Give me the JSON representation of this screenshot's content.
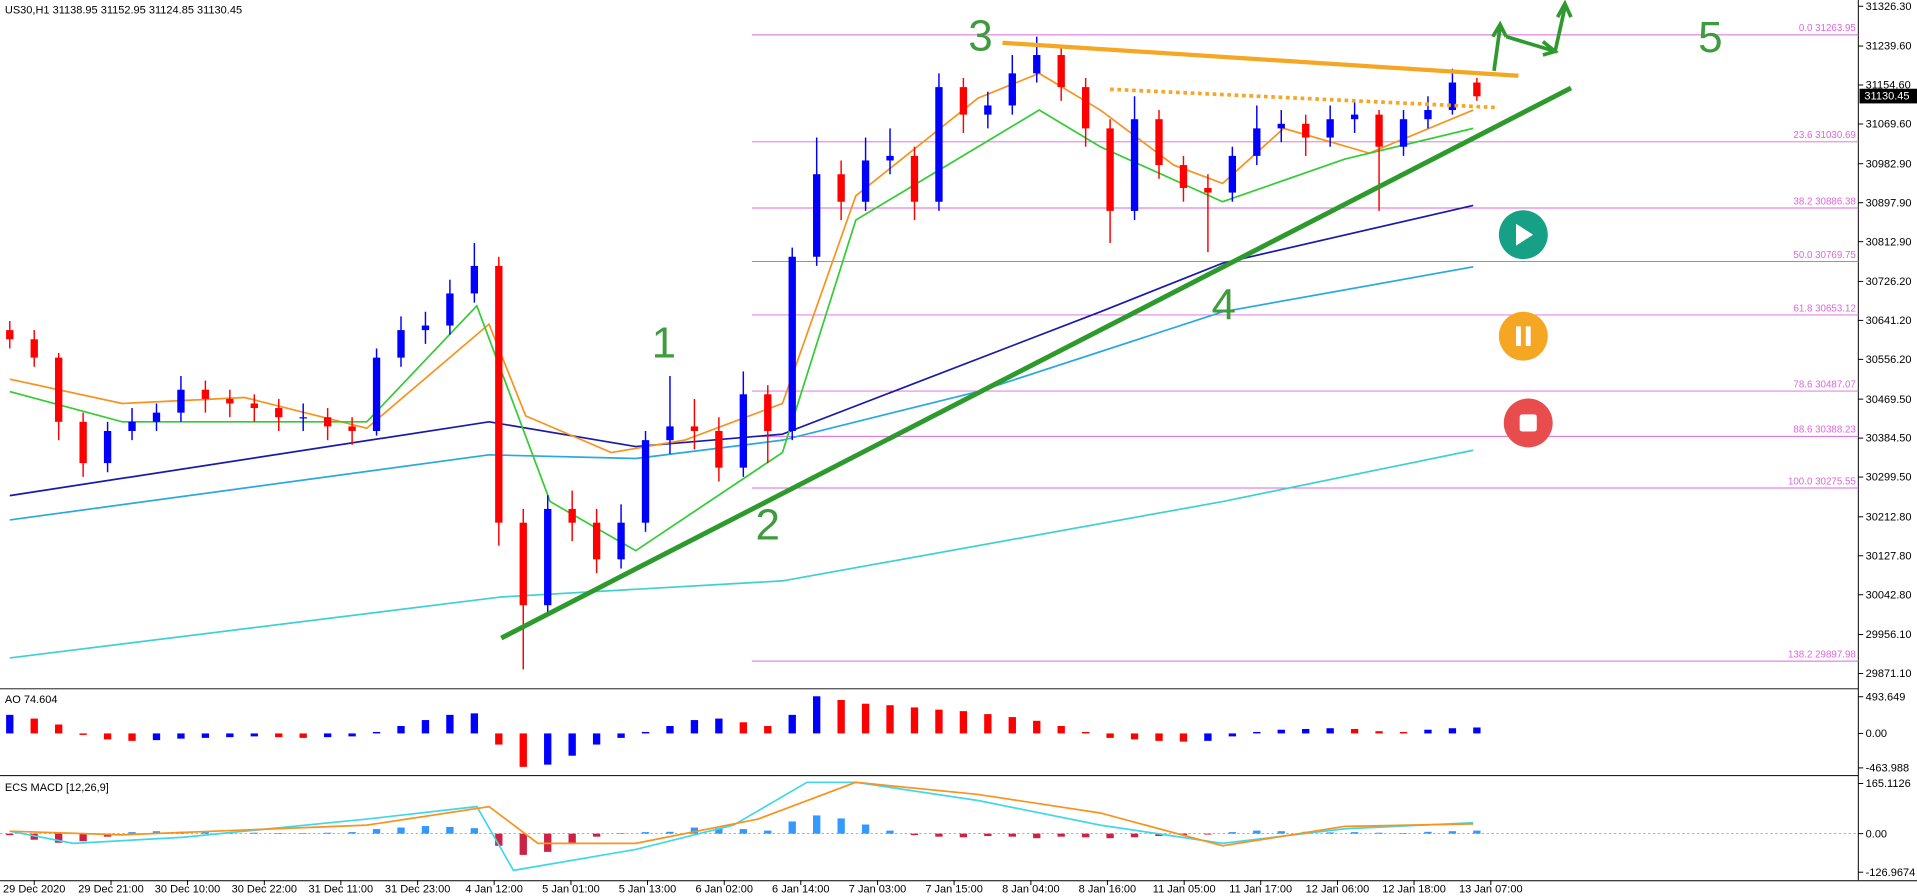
{
  "chart_data": [
    {
      "type": "candlestick",
      "title": "US30,H1",
      "header_ohlc": [
        31138.95,
        31152.95,
        31124.85,
        31130.45
      ],
      "current_price": 31130.45,
      "up_color": "#0000ff",
      "down_color": "#ff0000",
      "xlim": [
        -0.15,
        75.6
      ],
      "ylim": [
        29839,
        31340
      ],
      "yticks": [
        {
          "value": 31326.3,
          "label": "31326.30"
        },
        {
          "value": 31239.6,
          "label": "31239.60"
        },
        {
          "value": 31154.6,
          "label": "31154.60"
        },
        {
          "value": 31069.6,
          "label": "31069.60"
        },
        {
          "value": 30982.9,
          "label": "30982.90"
        },
        {
          "value": 30897.9,
          "label": "30897.90"
        },
        {
          "value": 30812.9,
          "label": "30812.90"
        },
        {
          "value": 30726.2,
          "label": "30726.20"
        },
        {
          "value": 30641.2,
          "label": "30641.20"
        },
        {
          "value": 30556.2,
          "label": "30556.20"
        },
        {
          "value": 30469.5,
          "label": "30469.50"
        },
        {
          "value": 30384.5,
          "label": "30384.50"
        },
        {
          "value": 30299.5,
          "label": "30299.50"
        },
        {
          "value": 30212.8,
          "label": "30212.80"
        },
        {
          "value": 30127.8,
          "label": "30127.80"
        },
        {
          "value": 30042.8,
          "label": "30042.80"
        },
        {
          "value": 29956.1,
          "label": "29956.10"
        },
        {
          "value": 29871.1,
          "label": "29871.10"
        }
      ],
      "ohlc": [
        [
          30620,
          30640,
          30580,
          30600
        ],
        [
          30600,
          30620,
          30540,
          30560
        ],
        [
          30560,
          30570,
          30380,
          30420
        ],
        [
          30420,
          30440,
          30300,
          30330
        ],
        [
          30330,
          30420,
          30310,
          30400
        ],
        [
          30400,
          30450,
          30380,
          30420
        ],
        [
          30420,
          30460,
          30400,
          30440
        ],
        [
          30440,
          30520,
          30420,
          30490
        ],
        [
          30490,
          30510,
          30440,
          30470
        ],
        [
          30470,
          30490,
          30430,
          30460
        ],
        [
          30460,
          30480,
          30420,
          30450
        ],
        [
          30450,
          30470,
          30400,
          30430
        ],
        [
          30430,
          30460,
          30400,
          30430
        ],
        [
          30430,
          30450,
          30380,
          30410
        ],
        [
          30410,
          30430,
          30370,
          30400
        ],
        [
          30400,
          30580,
          30390,
          30560
        ],
        [
          30560,
          30650,
          30540,
          30620
        ],
        [
          30620,
          30660,
          30590,
          30630
        ],
        [
          30630,
          30730,
          30610,
          30700
        ],
        [
          30700,
          30810,
          30680,
          30760
        ],
        [
          30760,
          30780,
          30150,
          30200
        ],
        [
          30200,
          30230,
          29880,
          30020
        ],
        [
          30020,
          30260,
          30000,
          30230
        ],
        [
          30230,
          30270,
          30160,
          30200
        ],
        [
          30200,
          30230,
          30090,
          30120
        ],
        [
          30120,
          30240,
          30100,
          30200
        ],
        [
          30200,
          30400,
          30180,
          30380
        ],
        [
          30380,
          30520,
          30350,
          30410
        ],
        [
          30410,
          30470,
          30360,
          30400
        ],
        [
          30400,
          30430,
          30290,
          30320
        ],
        [
          30320,
          30530,
          30300,
          30480
        ],
        [
          30480,
          30500,
          30330,
          30400
        ],
        [
          30400,
          30800,
          30380,
          30780
        ],
        [
          30780,
          31040,
          30760,
          30960
        ],
        [
          30960,
          30990,
          30860,
          30900
        ],
        [
          30900,
          31040,
          30880,
          30990
        ],
        [
          30990,
          31060,
          30960,
          31000
        ],
        [
          31000,
          31020,
          30860,
          30900
        ],
        [
          30900,
          31180,
          30880,
          31150
        ],
        [
          31150,
          31170,
          31050,
          31090
        ],
        [
          31090,
          31140,
          31060,
          31110
        ],
        [
          31110,
          31220,
          31090,
          31180
        ],
        [
          31180,
          31260,
          31160,
          31220
        ],
        [
          31220,
          31240,
          31120,
          31150
        ],
        [
          31150,
          31170,
          31020,
          31060
        ],
        [
          31060,
          31080,
          30810,
          30880
        ],
        [
          30880,
          31130,
          30860,
          31080
        ],
        [
          31080,
          31100,
          30950,
          30980
        ],
        [
          30980,
          31000,
          30900,
          30930
        ],
        [
          30930,
          30960,
          30790,
          30920
        ],
        [
          30920,
          31020,
          30900,
          31000
        ],
        [
          31000,
          31110,
          30980,
          31060
        ],
        [
          31060,
          31100,
          31030,
          31070
        ],
        [
          31070,
          31090,
          31000,
          31040
        ],
        [
          31040,
          31110,
          31020,
          31080
        ],
        [
          31080,
          31120,
          31050,
          31090
        ],
        [
          31090,
          31100,
          30880,
          31020
        ],
        [
          31020,
          31100,
          31000,
          31080
        ],
        [
          31080,
          31130,
          31060,
          31100
        ],
        [
          31100,
          31190,
          31090,
          31160
        ],
        [
          31160,
          31170,
          31120,
          31130
        ]
      ],
      "series": [
        {
          "color": "#1a1aa8",
          "x": [
            0,
            19.6,
            25.6,
            31.6,
            44.6,
            49.6,
            59.85
          ],
          "values": [
            30259,
            30420,
            30366,
            30393,
            30660,
            30766,
            30892
          ]
        },
        {
          "color": "#29a9e0",
          "x": [
            0,
            19.6,
            25.6,
            31.6,
            39.6,
            49.6,
            59.85
          ],
          "values": [
            30206,
            30348,
            30340,
            30380,
            30486,
            30660,
            30758
          ]
        },
        {
          "color": "#40d0d0",
          "x": [
            0,
            20.1,
            31.6,
            49.6,
            59.85
          ],
          "values": [
            29905,
            30038,
            30073,
            30246,
            30358
          ]
        },
        {
          "color": "#f7931e",
          "x": [
            0,
            4.6,
            9.6,
            14.6,
            19.6,
            21.1,
            24.6,
            27.6,
            31.6,
            34.6,
            39.6,
            42.1,
            44.6,
            47.6,
            49.6,
            52.1,
            55.6,
            59.85
          ],
          "values": [
            30513,
            30460,
            30473,
            30406,
            30633,
            30433,
            30353,
            30380,
            30460,
            30913,
            31126,
            31180,
            31100,
            30980,
            30940,
            31060,
            31006,
            31100
          ]
        },
        {
          "color": "#33cc33",
          "x": [
            0,
            4.6,
            14.6,
            19.1,
            22.1,
            25.6,
            31.6,
            34.6,
            39.6,
            42.1,
            44.6,
            49.6,
            54.6,
            59.85
          ],
          "values": [
            30486,
            30420,
            30420,
            30673,
            30246,
            30139,
            30353,
            30860,
            31020,
            31100,
            31020,
            30900,
            30993,
            31060
          ]
        }
      ],
      "fibonacci": {
        "color": "#dd66dd",
        "levels": [
          "0.0",
          "23.6",
          "38.2",
          "50.0",
          "61.8",
          "78.6",
          "88.6",
          "100.0",
          "138.2"
        ],
        "prices": [
          31263.95,
          31030.69,
          30886.38,
          30769.75,
          30653.12,
          30487.07,
          30388.23,
          30275.55,
          29897.98
        ]
      },
      "annotations": [
        "1",
        "2",
        "3",
        "4",
        "5"
      ]
    },
    {
      "type": "bar",
      "title": "AO",
      "last_value": 74.604,
      "up_color": "#0000ff",
      "down_color": "#ff0000",
      "ylim": [
        -543,
        576
      ],
      "yticks": [
        493.649,
        {
          "value": 0,
          "label": "0.00"
        },
        -463.988
      ],
      "values": [
        250,
        200,
        120,
        -20,
        -80,
        -100,
        -90,
        -70,
        -60,
        -50,
        -40,
        -50,
        -60,
        -50,
        -40,
        20,
        100,
        180,
        250,
        270,
        -150,
        -450,
        -420,
        -300,
        -150,
        -60,
        20,
        100,
        180,
        200,
        150,
        100,
        250,
        500,
        450,
        400,
        380,
        350,
        320,
        300,
        260,
        220,
        170,
        100,
        20,
        -60,
        -80,
        -100,
        -110,
        -100,
        -40,
        20,
        50,
        60,
        70,
        60,
        30,
        20,
        50,
        70,
        80
      ]
    },
    {
      "type": "macd",
      "title": "ECS MACD [12,26,9]",
      "up_color": "#3399ff",
      "down_color": "#cc2244",
      "ylim": [
        -153,
        181
      ],
      "yticks": [
        165.1126,
        {
          "value": 0,
          "label": "0.00"
        },
        -126.9674
      ],
      "values": [
        -5,
        -20,
        -30,
        -25,
        -10,
        5,
        8,
        6,
        5,
        4,
        3,
        2,
        1,
        3,
        5,
        15,
        20,
        25,
        22,
        18,
        -40,
        -70,
        -60,
        -30,
        -10,
        2,
        5,
        6,
        20,
        18,
        15,
        10,
        40,
        60,
        50,
        30,
        10,
        -5,
        -10,
        -12,
        -8,
        -10,
        -15,
        -10,
        -12,
        -15,
        -12,
        -8,
        -5,
        -3,
        5,
        10,
        8,
        6,
        4,
        5,
        3,
        2,
        6,
        8,
        10
      ],
      "series": [
        {
          "color": "#40d8e8",
          "x": [
            0,
            2.6,
            7.1,
            14.6,
            19.1,
            20.6,
            25.6,
            29.6,
            32.6,
            34.6,
            39.6,
            44.6,
            49.6,
            54.6,
            59.85
          ],
          "values": [
            8,
            -32,
            -12,
            48,
            89,
            -121,
            -52,
            28,
            169,
            169,
            109,
            28,
            -32,
            16,
            36
          ]
        },
        {
          "color": "#f7931e",
          "x": [
            0,
            4.6,
            14.6,
            19.6,
            21.6,
            25.6,
            30.6,
            34.6,
            39.6,
            44.6,
            49.6,
            54.6,
            59.85
          ],
          "values": [
            8,
            -4,
            28,
            89,
            -32,
            -32,
            48,
            169,
            129,
            68,
            -40,
            24,
            32
          ]
        }
      ],
      "xticks": [
        {
          "value": 1,
          "label": "29 Dec 2020"
        },
        {
          "value": 4.14,
          "label": "29 Dec 21:00"
        },
        {
          "value": 7.27,
          "label": "30 Dec 10:00"
        },
        {
          "value": 10.41,
          "label": "30 Dec 22:00"
        },
        {
          "value": 13.54,
          "label": "31 Dec 11:00"
        },
        {
          "value": 16.68,
          "label": "31 Dec 23:00"
        },
        {
          "value": 19.81,
          "label": "4 Jan 12:00"
        },
        {
          "value": 22.95,
          "label": "5 Jan 01:00"
        },
        {
          "value": 26.08,
          "label": "5 Jan 13:00"
        },
        {
          "value": 29.22,
          "label": "6 Jan 02:00"
        },
        {
          "value": 32.35,
          "label": "6 Jan 14:00"
        },
        {
          "value": 35.49,
          "label": "7 Jan 03:00"
        },
        {
          "value": 38.62,
          "label": "7 Jan 15:00"
        },
        {
          "value": 41.76,
          "label": "8 Jan 04:00"
        },
        {
          "value": 44.89,
          "label": "8 Jan 16:00"
        },
        {
          "value": 48.03,
          "label": "11 Jan 05:00"
        },
        {
          "value": 51.16,
          "label": "11 Jan 17:00"
        },
        {
          "value": 54.3,
          "label": "12 Jan 06:00"
        },
        {
          "value": 57.43,
          "label": "12 Jan 18:00"
        },
        {
          "value": 60.57,
          "label": "13 Jan 07:00"
        }
      ]
    }
  ]
}
